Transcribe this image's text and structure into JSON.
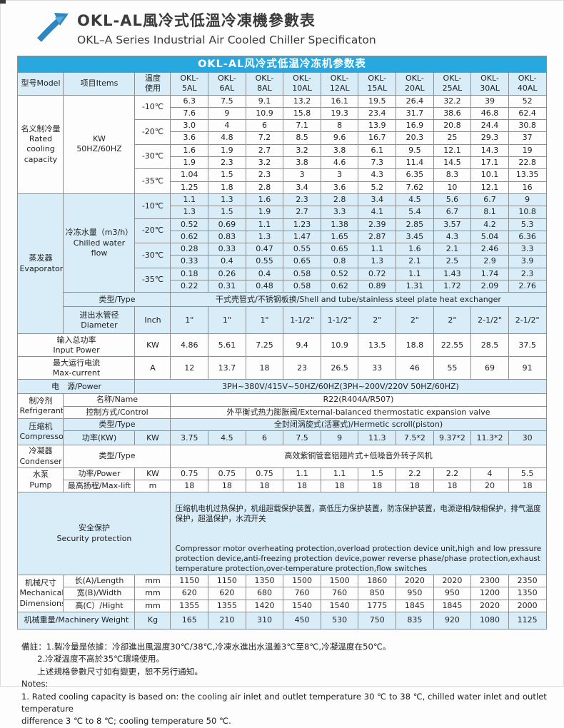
{
  "page_header": {
    "title_zh": "OKL-AL風冷式低溫冷凍機參數表",
    "title_en": "OKL–A Series Industrial Air Cooled Chiller Specificaton"
  },
  "colors": {
    "accent_blue": "#29A8DF",
    "row_blue": "#D8EDF8",
    "border_gray": "#8E8E8E",
    "logo_blue": "#2E86C1"
  },
  "table": {
    "title": "OKL-AL风冷式低温冷冻机参数表",
    "header": {
      "model": "型号Model",
      "items": "项目Items",
      "temp": "温度\n使用"
    },
    "models": [
      "OKL-\n5AL",
      "OKL-\n6AL",
      "OKL-\n8AL",
      "OKL-\n10AL",
      "OKL-\n12AL",
      "OKL-\n15AL",
      "OKL-\n20AL",
      "OKL-\n25AL",
      "OKL-\n30AL",
      "OKL-\n40AL"
    ],
    "cooling": {
      "label": "名义制冷量\nRated\ncooling\ncapacity",
      "unit": "KW\n50HZ/60HZ",
      "rows": [
        {
          "temp": "-10℃",
          "v50": [
            "6.3",
            "7.5",
            "9.1",
            "13.2",
            "16.1",
            "19.5",
            "26.4",
            "32.2",
            "39",
            "52"
          ],
          "v60": [
            "7.6",
            "9",
            "10.9",
            "15.8",
            "19.3",
            "23.4",
            "31.7",
            "38.6",
            "46.8",
            "62.4"
          ]
        },
        {
          "temp": "-20℃",
          "v50": [
            "3.0",
            "4",
            "6",
            "7.1",
            "8",
            "13.9",
            "16.9",
            "20.8",
            "24.4",
            "30.8"
          ],
          "v60": [
            "3.6",
            "4.8",
            "7.2",
            "8.5",
            "9.6",
            "16.7",
            "20.3",
            "25",
            "29.3",
            "37"
          ]
        },
        {
          "temp": "-30℃",
          "v50": [
            "1.6",
            "1.9",
            "2.7",
            "3.2",
            "3.8",
            "6.1",
            "9.5",
            "12.1",
            "14.3",
            "19"
          ],
          "v60": [
            "1.9",
            "2.3",
            "3.2",
            "3.8",
            "4.6",
            "7.3",
            "11.4",
            "14.5",
            "17.1",
            "22.8"
          ]
        },
        {
          "temp": "-35℃",
          "v50": [
            "1.04",
            "1.5",
            "2.3",
            "3",
            "3",
            "4.3",
            "6.35",
            "8.3",
            "10.1",
            "13.35"
          ],
          "v60": [
            "1.25",
            "1.8",
            "2.8",
            "3.4",
            "3.6",
            "5.2",
            "7.62",
            "10",
            "12.1",
            "16"
          ]
        }
      ]
    },
    "evaporator": {
      "label": "蒸发器\nEvaporator",
      "flow_label": "冷冻水量（m3/h）\nChilled water flow",
      "rows": [
        {
          "temp": "-10℃",
          "v50": [
            "1.1",
            "1.3",
            "1.6",
            "2.3",
            "2.8",
            "3.4",
            "4.5",
            "5.6",
            "6.7",
            "9"
          ],
          "v60": [
            "1.3",
            "1.5",
            "1.9",
            "2.7",
            "3.3",
            "4.1",
            "5.4",
            "6.7",
            "8.1",
            "10.8"
          ]
        },
        {
          "temp": "-20℃",
          "v50": [
            "0.52",
            "0.69",
            "1.1",
            "1.23",
            "1.38",
            "2.39",
            "2.85",
            "3.57",
            "4.2",
            "5.3"
          ],
          "v60": [
            "0.62",
            "0.83",
            "1.3",
            "1.47",
            "1.65",
            "2.87",
            "3.45",
            "4.3",
            "5.04",
            "6.36"
          ]
        },
        {
          "temp": "-30℃",
          "v50": [
            "0.28",
            "0.33",
            "0.47",
            "0.55",
            "0.65",
            "1.1",
            "1.6",
            "2.1",
            "2.46",
            "3.3"
          ],
          "v60": [
            "0.33",
            "0.4",
            "0.55",
            "0.65",
            "0.8",
            "1.3",
            "2.1",
            "2.5",
            "2.9",
            "3.9"
          ]
        },
        {
          "temp": "-35℃",
          "v50": [
            "0.18",
            "0.26",
            "0.4",
            "0.58",
            "0.52",
            "0.72",
            "1.1",
            "1.43",
            "1.74",
            "2.3"
          ],
          "v60": [
            "0.22",
            "0.31",
            "0.48",
            "0.58",
            "0.62",
            "0.89",
            "1.31",
            "1.72",
            "2.09",
            "2.76"
          ]
        }
      ],
      "type_label": "类型/Type",
      "type_value": "干式壳管式/不锈钢板换/Shell and tube/stainless steel plate heat exchanger",
      "diameter_label": "进出水管径\nDiameter",
      "diameter_unit": "Inch",
      "diameter_values": [
        "1\"",
        "1\"",
        "1\"",
        "1-1/2\"",
        "1-1/2\"",
        "2\"",
        "2\"",
        "2\"",
        "2-1/2\"",
        "2-1/2\""
      ]
    },
    "input_power": {
      "label": "输入总功率\nInput Power",
      "unit": "KW",
      "values": [
        "4.86",
        "5.61",
        "7.25",
        "9.4",
        "10.9",
        "13.5",
        "18.8",
        "22.55",
        "28.5",
        "37.5"
      ]
    },
    "max_current": {
      "label": "最大运行电流\nMax-current",
      "unit": "A",
      "values": [
        "12",
        "13.7",
        "18",
        "23",
        "26.5",
        "33",
        "46",
        "55",
        "69",
        "91"
      ]
    },
    "power_supply": {
      "label": "电　源/Power",
      "value": "3PH~380V/415V~50HZ/60HZ(3PH~200V/220V  50HZ/60HZ)"
    },
    "refrigerant": {
      "label": "制冷剂\nRefrigerant",
      "name_label": "名称/Name",
      "name_value": "R22(R404A/R507)",
      "control_label": "控制方式/Control",
      "control_value": "外平衡式热力膨胀阀/External-balanced thermostatic expansion valve"
    },
    "compressor": {
      "label": "压缩机\nCompressor",
      "type_label": "类型/Type",
      "type_value": "全封闭涡旋式(活塞式)/Hermetic scroll(piston)",
      "power_label": "功率(KW)",
      "power_unit": "KW",
      "power_values": [
        "3.75",
        "4.5",
        "6",
        "7.5",
        "9",
        "11.3",
        "7.5*2",
        "9.37*2",
        "11.3*2",
        "30"
      ]
    },
    "condenser": {
      "label": "冷凝器\nCondenser",
      "type_label": "类型/Type",
      "type_value": "高效紫铜管套铝翅片式+低噪音外转子风机"
    },
    "pump": {
      "label": "水泵\nPump",
      "power_label": "功率/Power",
      "power_unit": "KW",
      "power_values": [
        "0.75",
        "0.75",
        "0.75",
        "1.1",
        "1.1",
        "1.5",
        "2.2",
        "2.2",
        "4",
        "5.5"
      ],
      "lift_label": "最高扬程/Max-lift",
      "lift_unit": "m",
      "lift_values": [
        "18",
        "18",
        "18",
        "18",
        "18",
        "18",
        "18",
        "18",
        "20",
        "18"
      ]
    },
    "security": {
      "label": "安全保护\nSecurity protection",
      "text_zh": "压缩机电机过热保护，机组超载保护装置，高低压力保护装置，防冻保护装置，电源逆相/缺相保护，排气温度保护，超温保护，水流开关",
      "text_en": "Compressor motor overheating protection,overload protection device unit,high and low pressure protection device,anti-freezing protection device,power reverse phase/phase protection,exhaust temperature protection,over-temperature protection,flow switches"
    },
    "dimensions": {
      "label": "机械尺寸\nMechanical\nDimensions",
      "unit": "mm",
      "length_label": "长(A)/Length",
      "length_values": [
        "1150",
        "1150",
        "1350",
        "1500",
        "1500",
        "1860",
        "2020",
        "2020",
        "2300",
        "2350"
      ],
      "width_label": "宽(B)/Width",
      "width_values": [
        "620",
        "620",
        "680",
        "760",
        "760",
        "850",
        "950",
        "950",
        "1200",
        "1350"
      ],
      "height_label": "高(C）/Hight",
      "height_values": [
        "1355",
        "1355",
        "1420",
        "1540",
        "1540",
        "1775",
        "1845",
        "1845",
        "2020",
        "2000"
      ]
    },
    "weight": {
      "label": "机械重量/Machinery Weight",
      "unit": "Kg",
      "values": [
        "165",
        "210",
        "310",
        "450",
        "530",
        "750",
        "835",
        "920",
        "1080",
        "1125"
      ]
    }
  },
  "notes": {
    "lines": [
      "備註：1.製冷量是依據：冷卻進出風溫度30℃/38℃,冷凍水進出水溫差3℃至8℃,冷凝溫度在50℃。",
      "      2.冷凝溫度不高於35℃環境使用。",
      "      上述規格參數尺寸如有變更，恕不另行通知。",
      "Notes:",
      "1. Rated cooling capacity is based on: the cooling air inlet and outlet temperature 30 ℃ to 38 ℃, chilled water inlet and outlet temperature",
      "difference 3 ℃ to 8 ℃; cooling temperature 50 ℃."
    ]
  }
}
